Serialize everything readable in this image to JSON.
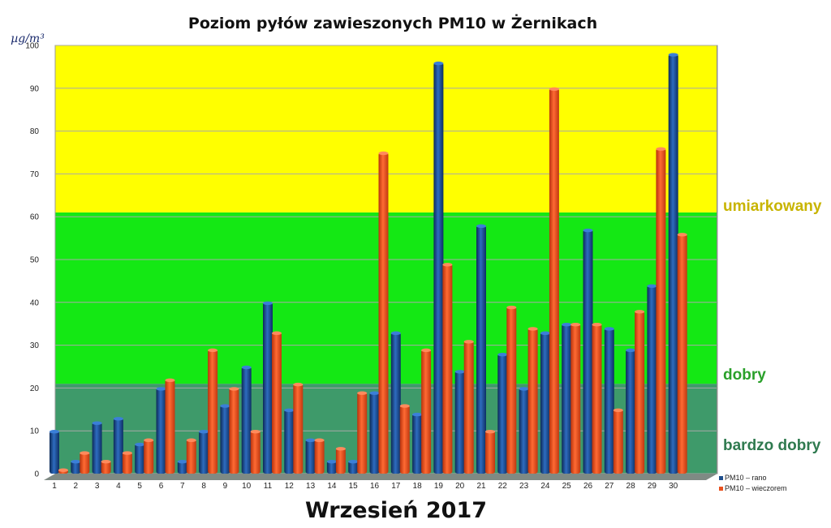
{
  "chart_data": {
    "type": "bar",
    "title": "Poziom pyłów zawieszonych PM10 w Żernikach",
    "subtitle": "Wrzesień 2017",
    "unit_label": "µg/m³",
    "ylim": [
      0,
      100
    ],
    "yticks": [
      0,
      10,
      20,
      30,
      40,
      50,
      60,
      70,
      80,
      90,
      100
    ],
    "grid": true,
    "legend_position": "bottom-right",
    "categories": [
      "1",
      "2",
      "3",
      "4",
      "5",
      "6",
      "7",
      "8",
      "9",
      "10",
      "11",
      "12",
      "13",
      "14",
      "15",
      "16",
      "17",
      "18",
      "19",
      "20",
      "21",
      "22",
      "23",
      "24",
      "25",
      "26",
      "27",
      "28",
      "29",
      "30"
    ],
    "series": [
      {
        "name": "PM10 – rano",
        "color": "#1f4e8c",
        "values": [
          10,
          3,
          12,
          13,
          7,
          20,
          3,
          10,
          16,
          25,
          40,
          15,
          8,
          3,
          3,
          19,
          33,
          14,
          96,
          24,
          58,
          28,
          20,
          33,
          35,
          57,
          34,
          29,
          44,
          98
        ]
      },
      {
        "name": "PM10 – wieczorem",
        "color": "#e8501e",
        "values": [
          1,
          5,
          3,
          5,
          8,
          22,
          8,
          29,
          20,
          10,
          33,
          21,
          8,
          6,
          19,
          75,
          16,
          29,
          49,
          31,
          10,
          39,
          34,
          90,
          35,
          35,
          15,
          38,
          76,
          56
        ]
      }
    ],
    "zones": [
      {
        "label": "bardzo dobry",
        "from": 0,
        "to": 21,
        "fill": "#3e9a6a",
        "label_color": "#2f7a4f"
      },
      {
        "label": "dobry",
        "from": 21,
        "to": 61,
        "fill": "#14e814",
        "label_color": "#2aa02a"
      },
      {
        "label": "umiarkowany",
        "from": 61,
        "to": 100,
        "fill": "#ffff00",
        "label_color": "#c8b400"
      }
    ]
  }
}
